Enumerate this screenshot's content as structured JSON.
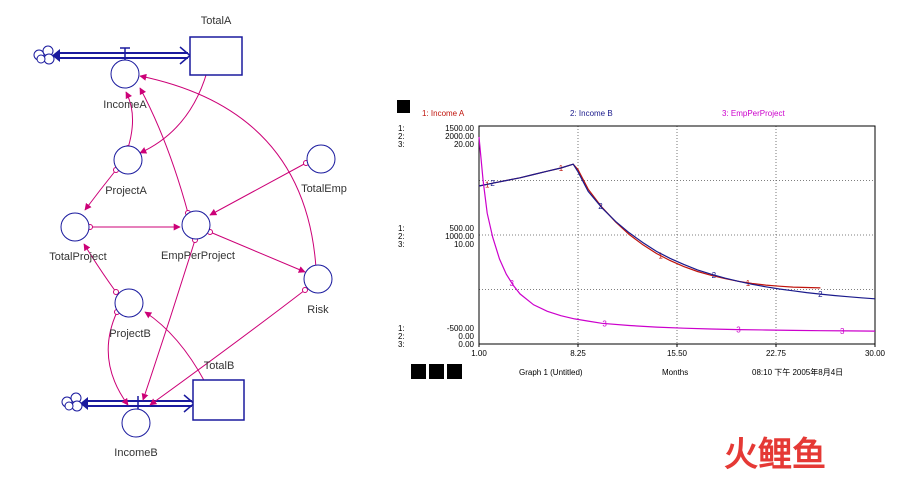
{
  "diagram": {
    "stocks": [
      {
        "id": "TotalA",
        "label": "TotalA"
      },
      {
        "id": "TotalB",
        "label": "TotalB"
      }
    ],
    "converters": [
      {
        "id": "IncomeA",
        "label": "IncomeA"
      },
      {
        "id": "ProjectA",
        "label": "ProjectA"
      },
      {
        "id": "TotalProject",
        "label": "TotalProject"
      },
      {
        "id": "EmpPerProject",
        "label": "EmpPerProject"
      },
      {
        "id": "TotalEmp",
        "label": "TotalEmp"
      },
      {
        "id": "Risk",
        "label": "Risk"
      },
      {
        "id": "ProjectB",
        "label": "ProjectB"
      },
      {
        "id": "IncomeB",
        "label": "IncomeB"
      }
    ],
    "flows": [
      {
        "from": "cloud",
        "to": "TotalA",
        "valve": "IncomeA"
      },
      {
        "from": "cloud",
        "to": "TotalB",
        "valve": "IncomeB"
      }
    ],
    "connectors": [
      {
        "from": "TotalA",
        "to": "ProjectA"
      },
      {
        "from": "ProjectA",
        "to": "IncomeA"
      },
      {
        "from": "ProjectA",
        "to": "TotalProject"
      },
      {
        "from": "TotalProject",
        "to": "EmpPerProject"
      },
      {
        "from": "TotalEmp",
        "to": "EmpPerProject"
      },
      {
        "from": "EmpPerProject",
        "to": "IncomeA"
      },
      {
        "from": "EmpPerProject",
        "to": "IncomeB"
      },
      {
        "from": "EmpPerProject",
        "to": "Risk"
      },
      {
        "from": "Risk",
        "to": "IncomeA"
      },
      {
        "from": "Risk",
        "to": "IncomeB"
      },
      {
        "from": "ProjectB",
        "to": "TotalProject"
      },
      {
        "from": "ProjectB",
        "to": "IncomeB"
      },
      {
        "from": "TotalB",
        "to": "ProjectB"
      }
    ],
    "colors": {
      "stock": "#1a1a9e",
      "flow": "#1a1a9e",
      "connector": "#cc0077",
      "node": "#1a1a9e"
    }
  },
  "graph": {
    "footer": {
      "title": "Graph 1 (Untitled)",
      "units": "Months",
      "timestamp": "08:10 下午  2005年8月4日"
    },
    "watermark": "火鲤鱼"
  },
  "chart_data": {
    "type": "line",
    "xlim": [
      1.0,
      30.0
    ],
    "x_ticks": [
      "1.00",
      "8.25",
      "15.50",
      "22.75",
      "30.00"
    ],
    "axis_scales": {
      "top": [
        "1500.00",
        "2000.00",
        "20.00"
      ],
      "mid": [
        "500.00",
        "1000.00",
        "10.00"
      ],
      "bottom": [
        "-500.00",
        "0.00",
        "0.00"
      ]
    },
    "axis_prefixes": [
      "1:",
      "2:",
      "3:"
    ],
    "grid": true,
    "legend_position": "top",
    "series": [
      {
        "name": "1: Income A",
        "color": "#c0140c",
        "ylim": [
          -500,
          1500
        ],
        "x": [
          1,
          2,
          3,
          4,
          5,
          6,
          7,
          7.9,
          8.25,
          9,
          10,
          11,
          12,
          13,
          14,
          15,
          16,
          17,
          18,
          19,
          20,
          21,
          22,
          23,
          24,
          25,
          26
        ],
        "y": [
          950,
          975,
          1000,
          1025,
          1055,
          1085,
          1115,
          1150,
          1100,
          920,
          755,
          620,
          505,
          410,
          330,
          265,
          210,
          165,
          130,
          100,
          75,
          55,
          40,
          30,
          22,
          18,
          15
        ]
      },
      {
        "name": "2: Income B",
        "color": "#1a1a8c",
        "ylim": [
          0,
          2000
        ],
        "x": [
          1,
          2,
          3,
          4,
          5,
          6,
          7,
          7.9,
          8.25,
          9,
          10,
          11,
          12,
          13,
          14,
          15,
          16,
          17,
          18,
          19,
          20,
          21,
          22,
          23,
          24,
          25,
          26,
          27,
          28,
          29,
          30
        ],
        "y": [
          1450,
          1475,
          1500,
          1525,
          1555,
          1585,
          1615,
          1650,
          1580,
          1400,
          1250,
          1125,
          1020,
          930,
          850,
          785,
          730,
          680,
          640,
          605,
          575,
          548,
          525,
          505,
          488,
          472,
          458,
          445,
          434,
          424,
          415
        ]
      },
      {
        "name": "3: EmpPerProject",
        "color": "#cc00cc",
        "ylim": [
          0,
          20
        ],
        "x": [
          1,
          1.3,
          1.6,
          2,
          2.5,
          3,
          3.5,
          4,
          5,
          6,
          7,
          8,
          9,
          10,
          12,
          14,
          16,
          18,
          20,
          22,
          24,
          26,
          28,
          30
        ],
        "y": [
          19,
          15,
          12,
          9.8,
          7.8,
          6.4,
          5.4,
          4.6,
          3.6,
          3.0,
          2.6,
          2.3,
          2.1,
          1.9,
          1.7,
          1.55,
          1.45,
          1.38,
          1.32,
          1.28,
          1.25,
          1.22,
          1.2,
          1.18
        ]
      }
    ]
  }
}
